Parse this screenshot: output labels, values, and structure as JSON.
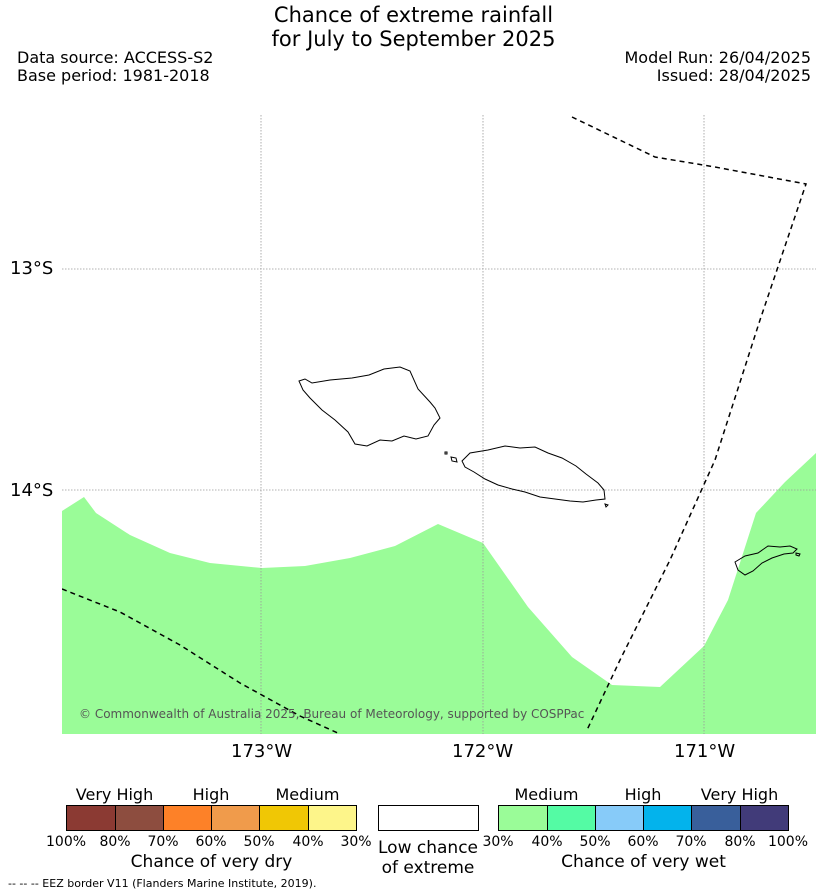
{
  "header": {
    "title_line1": "Chance of extreme rainfall",
    "title_line2": "for July to September 2025",
    "data_source": "Data source: ACCESS-S2",
    "base_period": "Base period: 1981-2018",
    "model_run": "Model Run: 26/04/2025",
    "issued": "Issued: 28/04/2025"
  },
  "map": {
    "lat_labels": [
      "13°S",
      "14°S"
    ],
    "lon_labels": [
      "173°W",
      "172°W",
      "171°W"
    ],
    "copyright": "© Commonwealth of Australia 2025, Bureau of Meteorology, supported by COSPPac",
    "wet_fill_color": "#9afc98",
    "eez_border_label": "EEZ border"
  },
  "legend": {
    "dry": {
      "categories": [
        "Very High",
        "High",
        "Medium"
      ],
      "percentages": [
        "100%",
        "80%",
        "70%",
        "60%",
        "50%",
        "40%",
        "30%"
      ],
      "colors": [
        "#8b3a33",
        "#8d4d3f",
        "#fd8128",
        "#f09b4b",
        "#f0c705",
        "#fdf58a"
      ],
      "title": "Chance of very dry"
    },
    "low": {
      "title_line1": "Low chance",
      "title_line2": "of extreme",
      "color": "#ffffff"
    },
    "wet": {
      "categories": [
        "Medium",
        "High",
        "Very High"
      ],
      "percentages": [
        "30%",
        "40%",
        "50%",
        "60%",
        "70%",
        "80%",
        "100%"
      ],
      "colors": [
        "#9afc98",
        "#54fba4",
        "#87cbf9",
        "#03b3ec",
        "#395f9b",
        "#413b79"
      ],
      "title": "Chance of very wet"
    }
  },
  "footnote": "--  --  -- EEZ border V11 (Flanders Marine Institute, 2019)."
}
